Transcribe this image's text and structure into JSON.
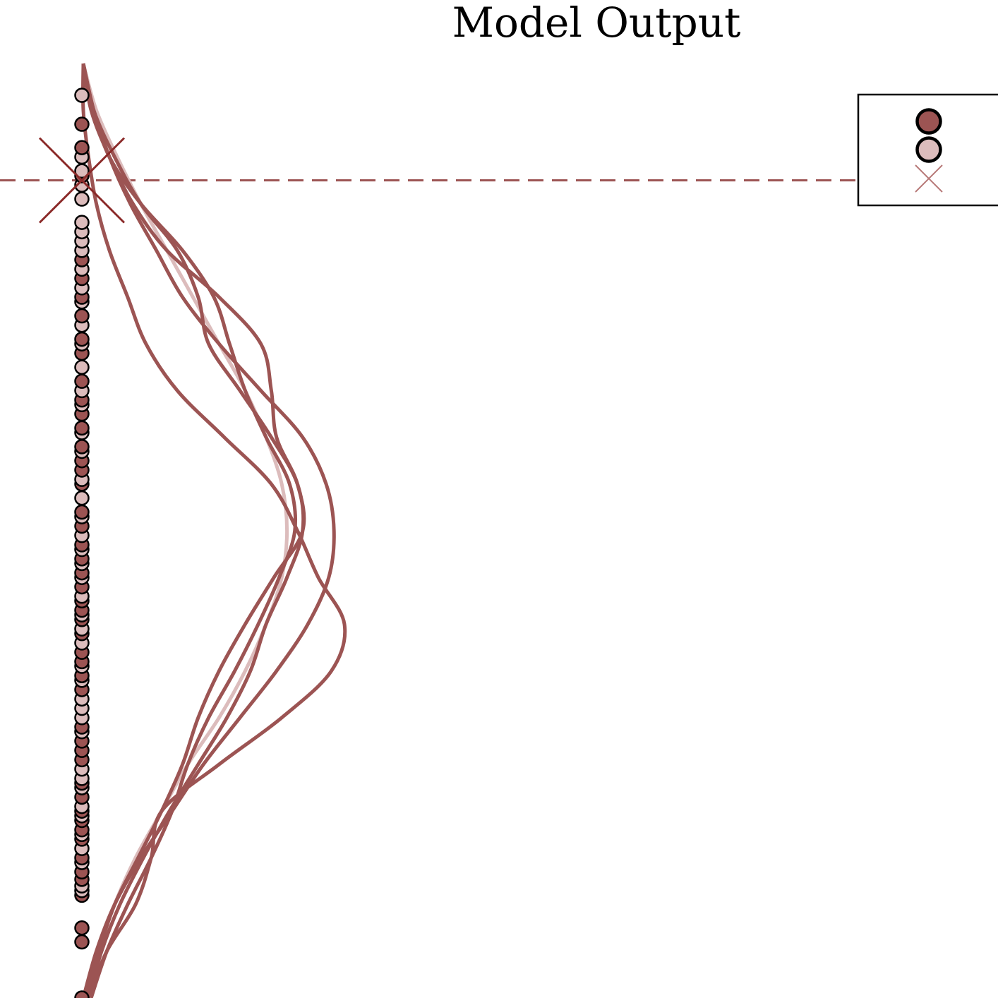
{
  "chart_data": {
    "type": "scatter",
    "title": "Model Output",
    "xlabel": "",
    "ylabel": "",
    "ylim": [
      0,
      1
    ],
    "grid": false,
    "axes_visible": false,
    "legend_position": "top-right",
    "reference_line": {
      "value": 0.875,
      "style": "dashed"
    },
    "marker_value": 0.875,
    "colors": {
      "dark": "#9c5453",
      "light": "#dcbcbc",
      "marker": "#8b2a29",
      "outline": "#000000"
    },
    "legend": [
      {
        "marker": "circle",
        "color": "#9c5453",
        "label": ""
      },
      {
        "marker": "circle",
        "color": "#dcbcbc",
        "label": ""
      },
      {
        "marker": "x",
        "color": "#b87a79",
        "label": ""
      }
    ],
    "points": {
      "dark": [
        0.935,
        0.91,
        0.88,
        0.79,
        0.77,
        0.75,
        0.73,
        0.705,
        0.69,
        0.66,
        0.64,
        0.625,
        0.61,
        0.59,
        0.575,
        0.565,
        0.55,
        0.52,
        0.505,
        0.485,
        0.47,
        0.455,
        0.44,
        0.425,
        0.415,
        0.405,
        0.39,
        0.37,
        0.36,
        0.345,
        0.33,
        0.29,
        0.275,
        0.265,
        0.255,
        0.23,
        0.215,
        0.2,
        0.19,
        0.18,
        0.17,
        0.15,
        0.135,
        0.127,
        0.11,
        0.0
      ],
      "light": [
        0.966,
        0.9,
        0.885,
        0.87,
        0.855,
        0.83,
        0.82,
        0.81,
        0.8,
        0.78,
        0.76,
        0.745,
        0.72,
        0.7,
        0.675,
        0.65,
        0.635,
        0.605,
        0.585,
        0.555,
        0.535,
        0.515,
        0.495,
        0.48,
        0.465,
        0.45,
        0.43,
        0.41,
        0.395,
        0.38,
        0.355,
        0.34,
        0.32,
        0.31,
        0.3,
        0.285,
        0.245,
        0.235,
        0.225,
        0.205,
        0.195,
        0.175,
        0.16,
        0.145,
        0.12,
        0.115
      ],
      "extra": [
        0.06,
        0.075
      ]
    },
    "series": [
      {
        "shade": "light",
        "values": [
          0.02,
          0.06,
          0.12,
          0.2,
          0.3,
          0.4,
          0.52,
          0.62,
          0.7,
          0.76,
          0.78,
          0.76,
          0.7,
          0.62,
          0.52,
          0.42,
          0.32,
          0.22,
          0.13,
          0.05,
          0.0
        ]
      },
      {
        "shade": "dark",
        "values": [
          0.02,
          0.07,
          0.14,
          0.23,
          0.33,
          0.44,
          0.55,
          0.64,
          0.7,
          0.78,
          0.84,
          0.82,
          0.72,
          0.6,
          0.48,
          0.44,
          0.36,
          0.22,
          0.12,
          0.04,
          0.0
        ]
      },
      {
        "shade": "dark",
        "values": [
          0.0,
          0.05,
          0.12,
          0.22,
          0.34,
          0.46,
          0.6,
          0.74,
          0.86,
          0.94,
          0.96,
          0.93,
          0.84,
          0.68,
          0.52,
          0.38,
          0.28,
          0.18,
          0.1,
          0.04,
          0.0
        ]
      },
      {
        "shade": "dark",
        "values": [
          0.02,
          0.09,
          0.2,
          0.26,
          0.3,
          0.52,
          0.76,
          0.95,
          1.0,
          0.9,
          0.82,
          0.72,
          0.54,
          0.36,
          0.24,
          0.17,
          0.1,
          0.05,
          0.02,
          0.0,
          0.0
        ]
      },
      {
        "shade": "dark",
        "values": [
          0.03,
          0.09,
          0.17,
          0.26,
          0.34,
          0.4,
          0.48,
          0.58,
          0.67,
          0.75,
          0.81,
          0.79,
          0.7,
          0.62,
          0.56,
          0.5,
          0.38,
          0.22,
          0.1,
          0.04,
          0.0
        ]
      },
      {
        "shade": "dark",
        "values": [
          0.01,
          0.06,
          0.12,
          0.21,
          0.3,
          0.38,
          0.44,
          0.52,
          0.62,
          0.73,
          0.84,
          0.82,
          0.74,
          0.72,
          0.68,
          0.52,
          0.32,
          0.19,
          0.1,
          0.03,
          0.0
        ]
      }
    ]
  }
}
